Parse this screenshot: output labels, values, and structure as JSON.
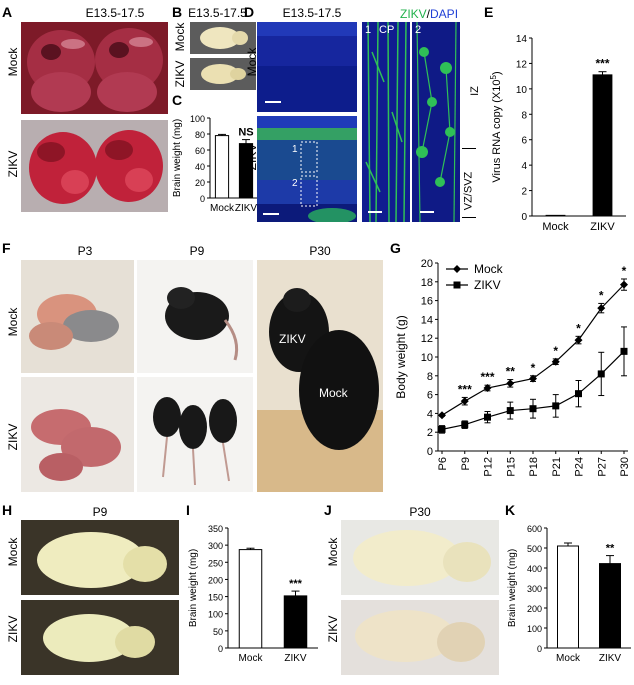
{
  "panels": {
    "A": {
      "letter": "A",
      "title": "E13.5-17.5",
      "rows": [
        "Mock",
        "ZIKV"
      ]
    },
    "B": {
      "letter": "B",
      "title": "E13.5-17.5",
      "rows": [
        "Mock",
        "ZIKV"
      ]
    },
    "C": {
      "letter": "C"
    },
    "D": {
      "letter": "D",
      "title": "E13.5-17.5",
      "rows": [
        "Mock",
        "ZIKV"
      ],
      "stain_zikv": "ZIKV",
      "stain_sep": "/",
      "stain_dapi": "DAPI",
      "insets": [
        "1",
        "2"
      ],
      "region_cp": "CP",
      "region_iz": "IZ",
      "region_vz": "VZ/SVZ"
    },
    "E": {
      "letter": "E"
    },
    "F": {
      "letter": "F",
      "cols": [
        "P3",
        "P9",
        "P30"
      ],
      "rows": [
        "Mock",
        "ZIKV"
      ],
      "in_photo": [
        "ZIKV",
        "Mock"
      ]
    },
    "G": {
      "letter": "G"
    },
    "H": {
      "letter": "H",
      "title": "P9",
      "rows": [
        "Mock",
        "ZIKV"
      ]
    },
    "I": {
      "letter": "I"
    },
    "J": {
      "letter": "J",
      "title": "P30",
      "rows": [
        "Mock",
        "ZIKV"
      ]
    },
    "K": {
      "letter": "K"
    }
  },
  "colors": {
    "mock_bar": "#ffffff",
    "zikv_bar": "#000000",
    "stain_green": "#22b14c",
    "stain_blue": "#1f3fd6"
  },
  "chart_data": [
    {
      "id": "C",
      "type": "bar",
      "categories": [
        "Mock",
        "ZIKV"
      ],
      "values": [
        78,
        68
      ],
      "errors": [
        1.5,
        5
      ],
      "ylabel": "Brain weight (mg)",
      "ylim": [
        0,
        100
      ],
      "yticks": [
        0,
        20,
        40,
        60,
        80,
        100
      ],
      "annotation": "NS"
    },
    {
      "id": "E",
      "type": "bar",
      "categories": [
        "Mock",
        "ZIKV"
      ],
      "values": [
        0.05,
        11.1
      ],
      "errors": [
        0,
        0.25
      ],
      "ylabel": "Virus RNA copy (X10",
      "ylabel_sup": "5",
      "ylabel_end": ")",
      "ylim": [
        0,
        14
      ],
      "yticks": [
        0,
        2,
        4,
        6,
        8,
        10,
        12,
        14
      ],
      "annotation": "***"
    },
    {
      "id": "G",
      "type": "line",
      "categories": [
        "P6",
        "P9",
        "P12",
        "P15",
        "P18",
        "P21",
        "P24",
        "P27",
        "P30"
      ],
      "series": [
        {
          "name": "Mock",
          "values": [
            3.8,
            5.3,
            6.7,
            7.2,
            7.7,
            9.5,
            11.8,
            15.2,
            17.7
          ],
          "errors": [
            0.1,
            0.4,
            0.3,
            0.4,
            0.3,
            0.3,
            0.4,
            0.5,
            0.6
          ],
          "marker": "diamond"
        },
        {
          "name": "ZIKV",
          "values": [
            2.3,
            2.8,
            3.6,
            4.3,
            4.5,
            4.8,
            6.1,
            8.2,
            10.6
          ],
          "errors": [
            0.4,
            0.4,
            0.6,
            0.9,
            1.0,
            1.2,
            1.4,
            2.3,
            2.6
          ],
          "marker": "square"
        }
      ],
      "significance": [
        "",
        "***",
        "***",
        "**",
        "*",
        "*",
        "*",
        "*",
        "*"
      ],
      "ylabel": "Body weight (g)",
      "ylim": [
        0,
        20
      ],
      "yticks": [
        0,
        2,
        4,
        6,
        8,
        10,
        12,
        14,
        16,
        18,
        20
      ],
      "legend": "top-left"
    },
    {
      "id": "I",
      "type": "bar",
      "categories": [
        "Mock",
        "ZIKV"
      ],
      "values": [
        287,
        152
      ],
      "errors": [
        4,
        14
      ],
      "ylabel": "Brain weight (mg)",
      "ylim": [
        0,
        350
      ],
      "yticks": [
        0,
        50,
        100,
        150,
        200,
        250,
        300,
        350
      ],
      "annotation": "***"
    },
    {
      "id": "K",
      "type": "bar",
      "categories": [
        "Mock",
        "ZIKV"
      ],
      "values": [
        510,
        422
      ],
      "errors": [
        15,
        40
      ],
      "ylabel": "Brain weight (mg)",
      "ylim": [
        0,
        600
      ],
      "yticks": [
        0,
        100,
        200,
        300,
        400,
        500,
        600
      ],
      "annotation": "**"
    }
  ]
}
